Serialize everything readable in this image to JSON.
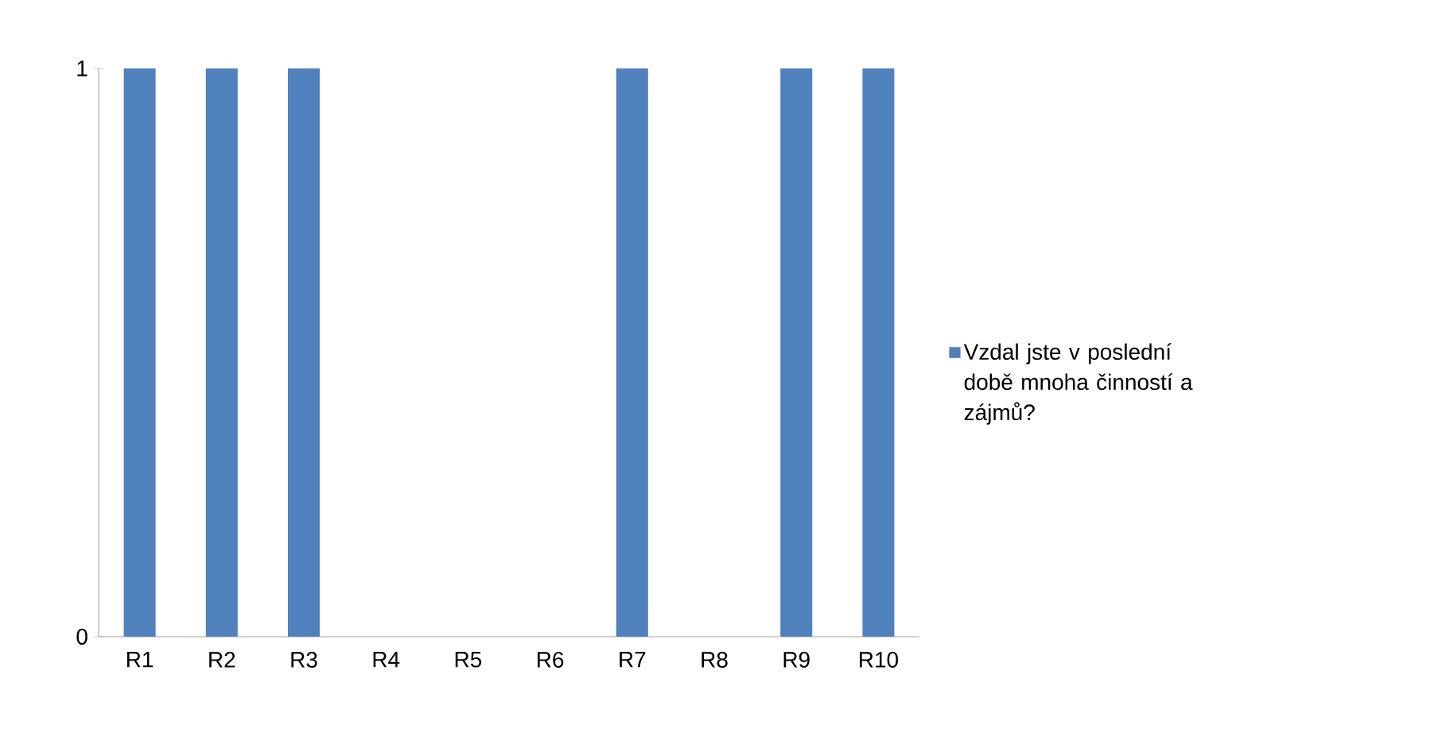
{
  "chart_data": {
    "type": "bar",
    "categories": [
      "R1",
      "R2",
      "R3",
      "R4",
      "R5",
      "R6",
      "R7",
      "R8",
      "R9",
      "R10"
    ],
    "series": [
      {
        "name": "Vzdal jste v poslední době mnoha činností a zájmů?",
        "color": "#4f81bd",
        "values": [
          1,
          1,
          1,
          0,
          0,
          0,
          1,
          0,
          1,
          1
        ]
      }
    ],
    "ylim": [
      0,
      1
    ],
    "yticks": [
      0,
      1
    ],
    "legend": "right"
  }
}
